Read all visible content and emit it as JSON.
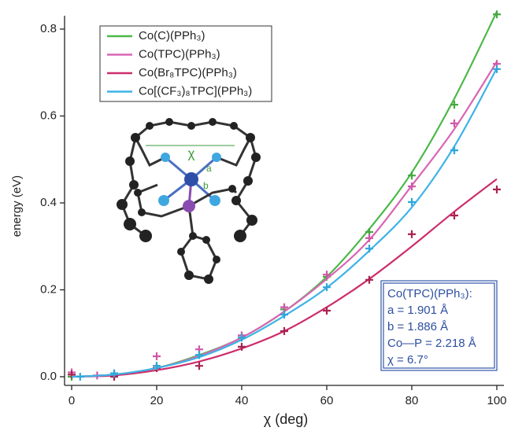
{
  "chart_data": {
    "type": "scatter",
    "x_label": "χ (deg)",
    "y_label": "energy (eV)",
    "xlim": [
      0,
      100
    ],
    "ylim": [
      0,
      0.8
    ],
    "xticks": [
      0,
      20,
      40,
      60,
      80,
      100
    ],
    "yticks": [
      {
        "value": 0,
        "label": "0.0"
      },
      0.2,
      0.4,
      0.6,
      0.8
    ],
    "legend": "top-left",
    "series": [
      {
        "name": "Co(C)(PPh₃)",
        "color": "#4cb848",
        "marker_color": "#45a842",
        "x": [
          0,
          10,
          20,
          30,
          40,
          50,
          60,
          70,
          80,
          90,
          100
        ],
        "values": [
          0,
          0.005,
          0.025,
          0.05,
          0.095,
          0.155,
          0.23,
          0.333,
          0.463,
          0.626,
          0.834
        ],
        "fit": {
          "x": [
            0,
            10,
            20,
            30,
            40,
            50,
            60,
            70,
            80,
            90,
            100
          ],
          "values": [
            0,
            0.005,
            0.02,
            0.05,
            0.09,
            0.15,
            0.23,
            0.34,
            0.47,
            0.64,
            0.84
          ]
        }
      },
      {
        "name": "Co(TPC)(PPh₃)",
        "color": "#d966b4",
        "marker_color": "#cf57a8",
        "x": [
          0,
          6,
          10,
          20,
          30,
          40,
          50,
          60,
          70,
          80,
          90,
          100
        ],
        "values": [
          0.01,
          0.003,
          0.005,
          0.047,
          0.063,
          0.095,
          0.16,
          0.235,
          0.319,
          0.438,
          0.583,
          0.72
        ],
        "fit": {
          "x": [
            0,
            10,
            20,
            30,
            40,
            50,
            60,
            70,
            80,
            90,
            100
          ],
          "values": [
            0,
            0.005,
            0.02,
            0.048,
            0.09,
            0.15,
            0.225,
            0.315,
            0.44,
            0.57,
            0.725
          ]
        }
      },
      {
        "name": "Co(Br₈TPC)(PPh₃)",
        "color": "#cc2e6c",
        "marker_color": "#a8234e",
        "x": [
          0,
          10,
          20,
          30,
          40,
          50,
          60,
          70,
          80,
          90,
          100
        ],
        "values": [
          0.005,
          0,
          0.02,
          0.025,
          0.069,
          0.105,
          0.152,
          0.223,
          0.328,
          0.371,
          0.431
        ],
        "fit": {
          "x": [
            0,
            10,
            20,
            30,
            40,
            50,
            60,
            70,
            80,
            90,
            100
          ],
          "values": [
            0,
            0.003,
            0.015,
            0.035,
            0.065,
            0.105,
            0.16,
            0.225,
            0.3,
            0.38,
            0.455
          ]
        }
      },
      {
        "name": "Co[(CF₃)₈TPC](PPh₃)",
        "color": "#3eb3e6",
        "marker_color": "#2fa6dc",
        "x": [
          2,
          10,
          20,
          30,
          40,
          50,
          60,
          70,
          80,
          90,
          100
        ],
        "values": [
          0,
          0.008,
          0.025,
          0.05,
          0.09,
          0.143,
          0.206,
          0.295,
          0.402,
          0.521,
          0.708
        ],
        "fit": {
          "x": [
            0,
            10,
            20,
            30,
            40,
            50,
            60,
            70,
            80,
            90,
            100
          ],
          "values": [
            0,
            0.005,
            0.02,
            0.045,
            0.085,
            0.14,
            0.205,
            0.29,
            0.39,
            0.53,
            0.71
          ]
        }
      }
    ],
    "inset_labels": [
      "χ",
      "a",
      "b"
    ],
    "info_box": [
      "Co(TPC)(PPh₃):",
      "a = 1.901 Å",
      "b = 1.886 Å",
      "Co—P = 2.218 Å",
      "χ = 6.7°"
    ]
  }
}
